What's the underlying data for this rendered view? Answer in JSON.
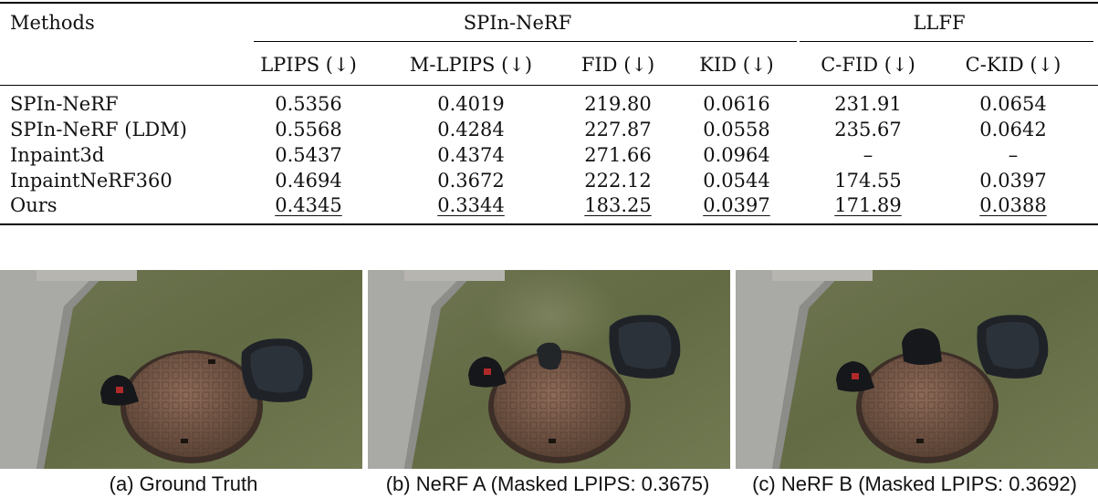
{
  "table": {
    "methods_label": "Methods",
    "groups": [
      "SPIn-NeRF",
      "LLFF"
    ],
    "columns": [
      "LPIPS (↓)",
      "M-LPIPS (↓)",
      "FID (↓)",
      "KID (↓)",
      "C-FID (↓)",
      "C-KID (↓)"
    ],
    "rows": [
      {
        "method": "SPIn-NeRF",
        "values": [
          "0.5356",
          "0.4019",
          "219.80",
          "0.0616",
          "231.91",
          "0.0654"
        ]
      },
      {
        "method": "SPIn-NeRF (LDM)",
        "values": [
          "0.5568",
          "0.4284",
          "227.87",
          "0.0558",
          "235.67",
          "0.0642"
        ]
      },
      {
        "method": "Inpaint3d",
        "values": [
          "0.5437",
          "0.4374",
          "271.66",
          "0.0964",
          "–",
          "–"
        ]
      },
      {
        "method": "InpaintNeRF360",
        "values": [
          "0.4694",
          "0.3672",
          "222.12",
          "0.0544",
          "174.55",
          "0.0397"
        ]
      },
      {
        "method": "Ours",
        "values": [
          "0.4345",
          "0.3344",
          "183.25",
          "0.0397",
          "171.89",
          "0.0388"
        ]
      }
    ]
  },
  "figures": {
    "captions": [
      "(a) Ground Truth",
      "(b) NeRF A (Masked LPIPS: 0.3675)",
      "(c) NeRF B (Masked LPIPS: 0.3692)"
    ]
  }
}
